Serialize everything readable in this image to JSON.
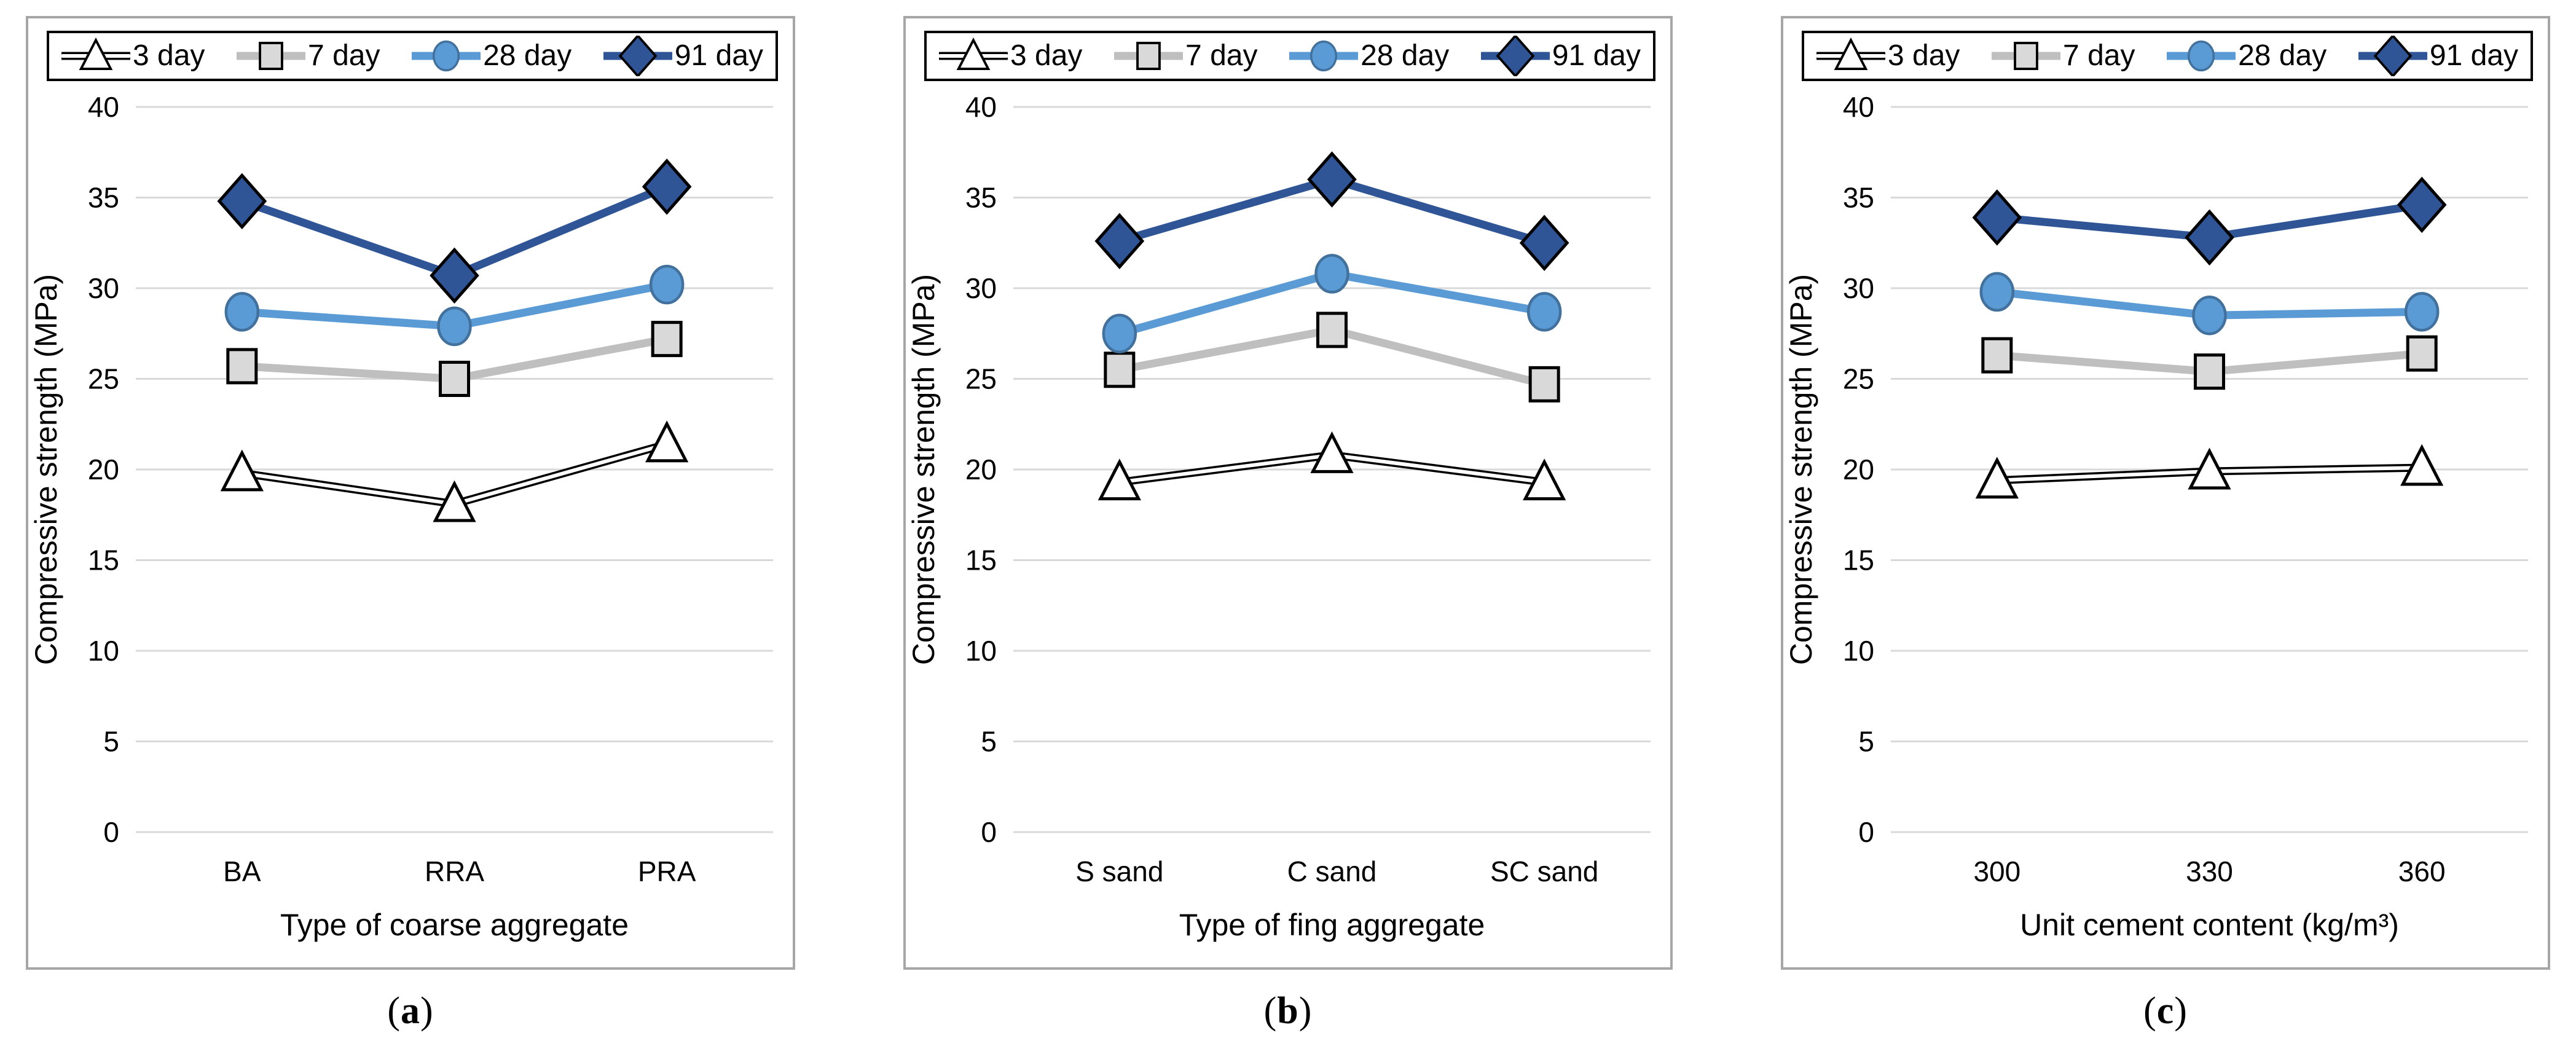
{
  "styles": {
    "background": "#FFFFFF",
    "panel_border": "#A6A6A6",
    "legend_border": "#000000",
    "grid_color": "#D9D9D9",
    "tick_text_color": "#000000"
  },
  "chart_data": [
    {
      "type": "line",
      "caption": {
        "open": "(",
        "letter": "a",
        "close": ")"
      },
      "xlabel": "Type of coarse aggregate",
      "ylabel": "Compressive strength (MPa)",
      "categories": [
        "BA",
        "RRA",
        "PRA"
      ],
      "ylim": [
        0,
        40
      ],
      "ytick_step": 5,
      "grid": true,
      "legend_position": "top",
      "series": [
        {
          "name": "3 day",
          "marker": "triangle",
          "line_color": "#000000",
          "line_inner_color": "#FFFFFF",
          "marker_fill": "#FFFFFF",
          "marker_stroke": "#000000",
          "values": [
            19.8,
            18.1,
            21.4
          ]
        },
        {
          "name": "7 day",
          "marker": "square",
          "line_color": "#BFBFBF",
          "marker_fill": "#D9D9D9",
          "marker_stroke": "#000000",
          "values": [
            25.7,
            25.0,
            27.2
          ]
        },
        {
          "name": "28 day",
          "marker": "circle",
          "line_color": "#5B9BD5",
          "marker_fill": "#5B9BD5",
          "marker_stroke": "#41719C",
          "values": [
            28.7,
            27.9,
            30.2
          ]
        },
        {
          "name": "91 day",
          "marker": "diamond",
          "line_color": "#2F5597",
          "marker_fill": "#2F5597",
          "marker_stroke": "#000000",
          "values": [
            34.8,
            30.7,
            35.6
          ]
        }
      ]
    },
    {
      "type": "line",
      "caption": {
        "open": "(",
        "letter": "b",
        "close": ")"
      },
      "xlabel": "Type of fing aggregate",
      "ylabel": "Compressive strength (MPa)",
      "categories": [
        "S sand",
        "C sand",
        "SC sand"
      ],
      "ylim": [
        0,
        40
      ],
      "ytick_step": 5,
      "grid": true,
      "legend_position": "top",
      "series": [
        {
          "name": "3 day",
          "marker": "triangle",
          "line_color": "#000000",
          "line_inner_color": "#FFFFFF",
          "marker_fill": "#FFFFFF",
          "marker_stroke": "#000000",
          "values": [
            19.3,
            20.8,
            19.3
          ]
        },
        {
          "name": "7 day",
          "marker": "square",
          "line_color": "#BFBFBF",
          "marker_fill": "#D9D9D9",
          "marker_stroke": "#000000",
          "values": [
            25.5,
            27.7,
            24.7
          ]
        },
        {
          "name": "28 day",
          "marker": "circle",
          "line_color": "#5B9BD5",
          "marker_fill": "#5B9BD5",
          "marker_stroke": "#41719C",
          "values": [
            27.5,
            30.8,
            28.7
          ]
        },
        {
          "name": "91 day",
          "marker": "diamond",
          "line_color": "#2F5597",
          "marker_fill": "#2F5597",
          "marker_stroke": "#000000",
          "values": [
            32.6,
            36.0,
            32.5
          ]
        }
      ]
    },
    {
      "type": "line",
      "caption": {
        "open": "(",
        "letter": "c",
        "close": ")"
      },
      "xlabel": "Unit cement content (kg/m³)",
      "ylabel": "Compressive strength (MPa)",
      "categories": [
        "300",
        "330",
        "360"
      ],
      "ylim": [
        0,
        40
      ],
      "ytick_step": 5,
      "grid": true,
      "legend_position": "top",
      "series": [
        {
          "name": "3 day",
          "marker": "triangle",
          "line_color": "#000000",
          "line_inner_color": "#FFFFFF",
          "marker_fill": "#FFFFFF",
          "marker_stroke": "#000000",
          "values": [
            19.4,
            19.9,
            20.1
          ]
        },
        {
          "name": "7 day",
          "marker": "square",
          "line_color": "#BFBFBF",
          "marker_fill": "#D9D9D9",
          "marker_stroke": "#000000",
          "values": [
            26.3,
            25.4,
            26.4
          ]
        },
        {
          "name": "28 day",
          "marker": "circle",
          "line_color": "#5B9BD5",
          "marker_fill": "#5B9BD5",
          "marker_stroke": "#41719C",
          "values": [
            29.8,
            28.5,
            28.7
          ]
        },
        {
          "name": "91 day",
          "marker": "diamond",
          "line_color": "#2F5597",
          "marker_fill": "#2F5597",
          "marker_stroke": "#000000",
          "values": [
            33.9,
            32.8,
            34.6
          ]
        }
      ]
    }
  ]
}
